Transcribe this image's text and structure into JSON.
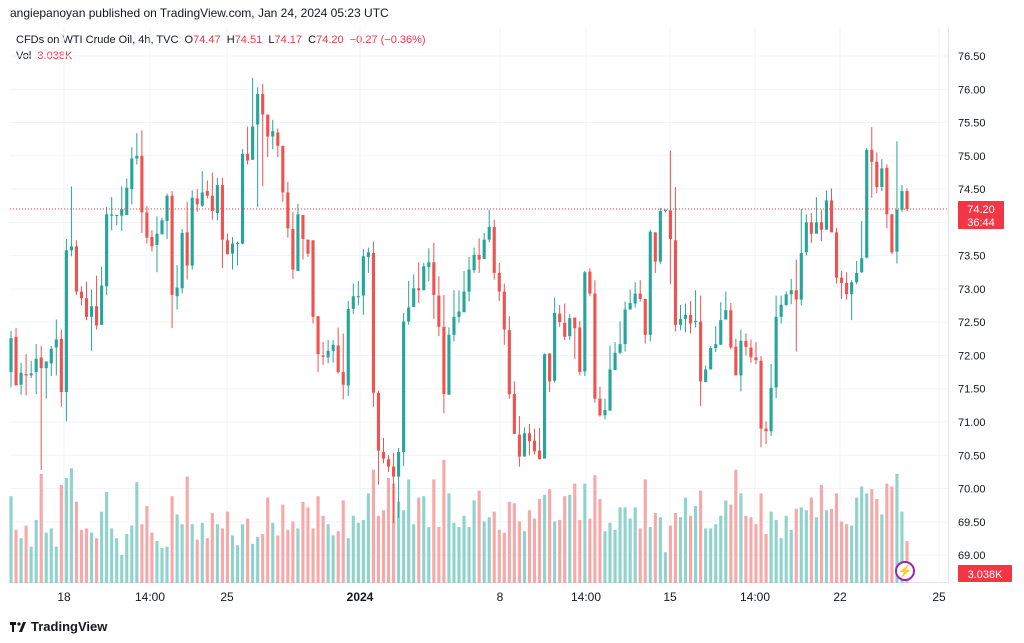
{
  "publisher": "angiepanoyan published on TradingView.com, Jan 24, 2024 05:23 UTC",
  "legend": {
    "symbol": "CFDs on WTI Crude Oil, 4h, TVC",
    "o_label": "O",
    "o": "74.47",
    "h_label": "H",
    "h": "74.51",
    "l_label": "L",
    "l": "74.17",
    "c_label": "C",
    "c": "74.20",
    "change": "−0.27 (−0.36%)",
    "vol_label": "Vol",
    "vol": "3.038K"
  },
  "price_tag": {
    "price": "74.20",
    "countdown": "36:44",
    "volume": "3.038K"
  },
  "brand": "TradingView",
  "colors": {
    "up": "#26a69a",
    "down": "#ef5350",
    "vol_up": "#8fd3cc",
    "vol_down": "#f7a8a8"
  },
  "chart_data": {
    "type": "candlestick",
    "timeframe": "4h",
    "ylim": [
      68.8,
      76.8
    ],
    "y_ticks": [
      "76.50",
      "76.00",
      "75.50",
      "75.00",
      "74.50",
      "74.00",
      "73.50",
      "73.00",
      "72.50",
      "72.00",
      "71.50",
      "71.00",
      "70.50",
      "70.00",
      "69.50",
      "69.00"
    ],
    "x_ticks": [
      "18",
      "14:00",
      "25",
      "2024",
      "8",
      "14:00",
      "15",
      "14:00",
      "22",
      "25"
    ],
    "last_price": 74.2,
    "candles": [
      [
        71.75,
        72.26,
        72.37,
        71.52,
        0.62
      ],
      [
        72.28,
        71.55,
        72.41,
        71.58,
        0.38
      ],
      [
        71.56,
        71.74,
        71.89,
        71.41,
        0.32
      ],
      [
        71.72,
        71.7,
        72.02,
        71.4,
        0.41
      ],
      [
        71.7,
        71.73,
        71.92,
        71.66,
        0.26
      ],
      [
        71.75,
        71.95,
        72.17,
        71.42,
        0.45
      ],
      [
        71.97,
        71.81,
        72.14,
        70.28,
        0.78
      ],
      [
        71.81,
        71.91,
        71.91,
        71.35,
        0.36
      ],
      [
        71.88,
        72.1,
        72.14,
        71.69,
        0.39
      ],
      [
        72.12,
        72.24,
        72.54,
        71.7,
        0.26
      ],
      [
        72.25,
        71.45,
        72.39,
        71.23,
        0.7
      ],
      [
        71.45,
        73.58,
        73.75,
        71.01,
        0.75
      ],
      [
        73.58,
        73.64,
        74.54,
        73.49,
        0.82
      ],
      [
        73.64,
        72.96,
        73.73,
        72.91,
        0.58
      ],
      [
        72.96,
        72.86,
        73.04,
        72.75,
        0.38
      ],
      [
        72.86,
        72.58,
        73.11,
        72.53,
        0.39
      ],
      [
        72.58,
        72.74,
        72.99,
        72.07,
        0.36
      ],
      [
        72.74,
        72.45,
        73.2,
        72.39,
        0.32
      ],
      [
        72.46,
        73.05,
        73.33,
        72.54,
        0.51
      ],
      [
        73.04,
        74.12,
        74.23,
        72.91,
        0.65
      ],
      [
        74.1,
        74.12,
        74.38,
        73.88,
        0.39
      ],
      [
        74.11,
        74.11,
        74.11,
        73.96,
        0.32
      ],
      [
        74.1,
        74.2,
        74.54,
        73.87,
        0.2
      ],
      [
        74.11,
        74.52,
        74.66,
        74.4,
        0.35
      ],
      [
        74.5,
        74.96,
        75.13,
        74.27,
        0.41
      ],
      [
        74.96,
        75.0,
        75.34,
        74.87,
        0.72
      ],
      [
        75.0,
        74.15,
        75.38,
        73.84,
        0.42
      ],
      [
        74.15,
        73.77,
        74.25,
        73.68,
        0.55
      ],
      [
        73.78,
        73.64,
        73.88,
        73.56,
        0.36
      ],
      [
        73.66,
        73.83,
        74.09,
        73.25,
        0.3
      ],
      [
        73.82,
        74.03,
        74.07,
        73.98,
        0.25
      ],
      [
        74.02,
        74.4,
        74.43,
        73.75,
        0.26
      ],
      [
        74.4,
        72.91,
        74.47,
        72.41,
        0.62
      ],
      [
        72.89,
        73.02,
        73.36,
        72.69,
        0.49
      ],
      [
        73.01,
        73.84,
        73.9,
        72.93,
        0.42
      ],
      [
        73.85,
        73.35,
        74.31,
        73.14,
        0.76
      ],
      [
        73.35,
        74.37,
        74.48,
        73.29,
        0.42
      ],
      [
        74.36,
        74.27,
        74.5,
        74.16,
        0.31
      ],
      [
        74.25,
        74.45,
        74.77,
        74.23,
        0.43
      ],
      [
        74.47,
        74.4,
        74.63,
        74.36,
        0.32
      ],
      [
        74.4,
        74.17,
        74.75,
        74.04,
        0.5
      ],
      [
        74.14,
        74.56,
        74.67,
        74.03,
        0.42
      ],
      [
        74.56,
        73.74,
        74.67,
        73.31,
        0.39
      ],
      [
        73.73,
        73.52,
        73.83,
        73.58,
        0.51
      ],
      [
        73.53,
        73.68,
        73.78,
        73.29,
        0.34
      ],
      [
        73.69,
        73.69,
        73.71,
        73.35,
        0.27
      ],
      [
        73.68,
        75.03,
        75.1,
        73.67,
        0.42
      ],
      [
        75.03,
        74.93,
        75.44,
        74.87,
        0.46
      ],
      [
        74.94,
        75.44,
        76.17,
        75.51,
        0.28
      ],
      [
        75.47,
        75.93,
        76.03,
        74.23,
        0.33
      ],
      [
        75.93,
        75.62,
        76.08,
        74.54,
        0.35
      ],
      [
        75.62,
        75.29,
        75.47,
        74.98,
        0.61
      ],
      [
        75.29,
        75.37,
        75.54,
        75.1,
        0.43
      ],
      [
        75.35,
        75.15,
        75.41,
        74.98,
        0.34
      ],
      [
        75.15,
        74.45,
        75.02,
        74.31,
        0.56
      ],
      [
        74.45,
        73.91,
        74.61,
        73.77,
        0.38
      ],
      [
        73.9,
        73.29,
        74.15,
        73.15,
        0.44
      ],
      [
        73.27,
        74.12,
        74.28,
        73.54,
        0.39
      ],
      [
        74.11,
        73.75,
        73.89,
        73.44,
        0.58
      ],
      [
        73.74,
        73.53,
        73.64,
        73.48,
        0.54
      ],
      [
        73.73,
        72.58,
        73.71,
        72.48,
        0.39
      ],
      [
        72.59,
        72.02,
        72.18,
        71.75,
        0.62
      ],
      [
        72.0,
        71.98,
        72.2,
        71.86,
        0.48
      ],
      [
        71.97,
        72.07,
        72.23,
        71.88,
        0.42
      ],
      [
        72.07,
        72.16,
        72.23,
        71.89,
        0.34
      ],
      [
        72.15,
        71.75,
        72.42,
        71.73,
        0.37
      ],
      [
        71.75,
        71.56,
        72.33,
        71.34,
        0.59
      ],
      [
        71.55,
        72.7,
        72.82,
        71.39,
        0.32
      ],
      [
        72.7,
        72.89,
        73.08,
        72.62,
        0.48
      ],
      [
        72.88,
        72.89,
        73.12,
        72.75,
        0.43
      ],
      [
        72.9,
        73.49,
        73.6,
        72.61,
        0.45
      ],
      [
        73.48,
        73.55,
        73.62,
        73.24,
        0.64
      ],
      [
        73.54,
        71.44,
        73.71,
        71.23,
        0.81
      ],
      [
        71.44,
        70.57,
        71.47,
        70.06,
        0.48
      ],
      [
        70.55,
        70.45,
        70.76,
        70.38,
        0.52
      ],
      [
        70.44,
        70.33,
        70.5,
        70.25,
        0.75
      ],
      [
        70.33,
        70.18,
        70.54,
        69.48,
        0.71
      ],
      [
        70.18,
        70.55,
        70.61,
        69.56,
        0.58
      ],
      [
        70.55,
        72.51,
        72.64,
        70.34,
        0.52
      ],
      [
        72.51,
        72.72,
        73.12,
        72.46,
        0.74
      ],
      [
        72.73,
        73.01,
        73.22,
        72.85,
        0.42
      ],
      [
        73.01,
        72.98,
        73.4,
        72.79,
        0.61
      ],
      [
        72.98,
        73.34,
        73.39,
        72.99,
        0.62
      ],
      [
        73.33,
        73.4,
        73.61,
        73.12,
        0.4
      ],
      [
        73.4,
        72.91,
        73.69,
        72.55,
        0.74
      ],
      [
        72.9,
        72.43,
        73.19,
        72.29,
        0.4
      ],
      [
        72.43,
        71.42,
        72.91,
        71.13,
        0.88
      ],
      [
        71.41,
        72.31,
        72.42,
        71.42,
        0.64
      ],
      [
        72.31,
        72.58,
        72.98,
        72.21,
        0.43
      ],
      [
        72.58,
        72.66,
        72.98,
        72.49,
        0.4
      ],
      [
        72.65,
        72.96,
        73.27,
        72.85,
        0.48
      ],
      [
        72.96,
        73.29,
        73.48,
        72.81,
        0.4
      ],
      [
        73.28,
        73.51,
        73.62,
        73.24,
        0.59
      ],
      [
        73.51,
        73.44,
        73.76,
        73.24,
        0.66
      ],
      [
        73.45,
        73.74,
        73.84,
        73.51,
        0.44
      ],
      [
        73.74,
        73.93,
        74.19,
        73.7,
        0.47
      ],
      [
        73.93,
        73.24,
        74.04,
        73.14,
        0.51
      ],
      [
        73.24,
        72.96,
        73.39,
        72.82,
        0.38
      ],
      [
        72.96,
        72.39,
        73.08,
        72.16,
        0.36
      ],
      [
        72.38,
        71.42,
        72.59,
        71.35,
        0.58
      ],
      [
        71.42,
        70.82,
        71.61,
        70.89,
        0.57
      ],
      [
        70.81,
        70.48,
        71.09,
        70.33,
        0.44
      ],
      [
        70.48,
        70.83,
        70.92,
        70.66,
        0.37
      ],
      [
        70.83,
        70.71,
        70.97,
        70.5,
        0.52
      ],
      [
        70.72,
        70.56,
        70.9,
        70.51,
        0.46
      ],
      [
        70.57,
        70.44,
        70.91,
        70.46,
        0.6
      ],
      [
        70.45,
        72.02,
        72.03,
        70.49,
        0.63
      ],
      [
        72.03,
        71.61,
        71.73,
        71.45,
        0.67
      ],
      [
        71.62,
        72.64,
        72.87,
        71.59,
        0.44
      ],
      [
        72.63,
        72.5,
        72.76,
        72.43,
        0.45
      ],
      [
        72.49,
        72.28,
        72.78,
        72.23,
        0.62
      ],
      [
        72.29,
        72.56,
        72.62,
        72.23,
        0.63
      ],
      [
        72.57,
        72.41,
        72.56,
        71.95,
        0.71
      ],
      [
        72.42,
        71.75,
        72.52,
        71.7,
        0.45
      ],
      [
        71.76,
        73.25,
        73.27,
        71.69,
        0.71
      ],
      [
        73.26,
        72.93,
        73.31,
        72.89,
        0.46
      ],
      [
        72.93,
        71.35,
        73.13,
        71.29,
        0.77
      ],
      [
        71.35,
        71.1,
        71.53,
        71.08,
        0.6
      ],
      [
        71.1,
        71.18,
        71.35,
        71.04,
        0.37
      ],
      [
        71.17,
        71.79,
        72.15,
        71.52,
        0.43
      ],
      [
        71.78,
        72.04,
        72.2,
        71.9,
        0.38
      ],
      [
        72.04,
        72.17,
        72.51,
        72.02,
        0.54
      ],
      [
        72.17,
        72.69,
        72.81,
        72.06,
        0.54
      ],
      [
        72.69,
        72.79,
        72.99,
        72.72,
        0.46
      ],
      [
        72.78,
        72.93,
        73.1,
        72.72,
        0.54
      ],
      [
        72.93,
        72.85,
        73.13,
        72.81,
        0.39
      ],
      [
        72.85,
        72.31,
        72.83,
        72.18,
        0.74
      ],
      [
        72.31,
        73.86,
        73.89,
        72.21,
        0.4
      ],
      [
        73.85,
        73.41,
        73.83,
        73.24,
        0.5
      ],
      [
        73.41,
        74.17,
        74.22,
        73.37,
        0.47
      ],
      [
        74.17,
        74.19,
        74.19,
        74.15,
        0.22
      ],
      [
        74.18,
        73.75,
        75.08,
        73.07,
        0.41
      ],
      [
        73.73,
        72.46,
        74.53,
        72.36,
        0.5
      ],
      [
        72.46,
        72.55,
        72.76,
        72.38,
        0.47
      ],
      [
        72.55,
        72.61,
        72.78,
        72.35,
        0.61
      ],
      [
        72.61,
        72.48,
        72.82,
        72.33,
        0.48
      ],
      [
        72.5,
        72.52,
        72.98,
        72.42,
        0.55
      ],
      [
        72.51,
        71.61,
        72.9,
        71.24,
        0.66
      ],
      [
        71.6,
        71.79,
        71.85,
        71.62,
        0.39
      ],
      [
        71.79,
        72.11,
        72.14,
        71.89,
        0.39
      ],
      [
        72.11,
        72.17,
        72.44,
        72.05,
        0.42
      ],
      [
        72.16,
        72.53,
        72.8,
        72.16,
        0.48
      ],
      [
        72.54,
        72.68,
        72.96,
        72.56,
        0.59
      ],
      [
        72.68,
        72.12,
        72.79,
        72.09,
        0.56
      ],
      [
        72.13,
        71.7,
        72.25,
        71.71,
        0.81
      ],
      [
        71.7,
        72.22,
        72.39,
        71.46,
        0.64
      ],
      [
        72.22,
        72.13,
        72.33,
        72.0,
        0.48
      ],
      [
        72.12,
        71.97,
        72.24,
        71.89,
        0.47
      ],
      [
        71.97,
        71.93,
        72.2,
        71.87,
        0.42
      ],
      [
        71.92,
        70.9,
        71.99,
        70.62,
        0.64
      ],
      [
        70.9,
        70.86,
        71.01,
        70.67,
        0.35
      ],
      [
        70.86,
        71.51,
        71.87,
        70.79,
        0.51
      ],
      [
        71.52,
        72.58,
        72.9,
        71.36,
        0.45
      ],
      [
        72.58,
        72.76,
        72.9,
        72.48,
        0.32
      ],
      [
        72.76,
        72.92,
        72.96,
        72.74,
        0.48
      ],
      [
        72.92,
        72.98,
        73.15,
        72.77,
        0.38
      ],
      [
        72.98,
        72.84,
        73.44,
        72.06,
        0.53
      ],
      [
        72.84,
        73.54,
        74.2,
        72.75,
        0.54
      ],
      [
        73.55,
        74.0,
        74.12,
        73.5,
        0.52
      ],
      [
        74.0,
        73.83,
        74.14,
        73.69,
        0.61
      ],
      [
        73.83,
        74.0,
        74.38,
        73.88,
        0.47
      ],
      [
        74.0,
        73.89,
        74.19,
        73.72,
        0.7
      ],
      [
        73.89,
        74.33,
        74.48,
        74.07,
        0.52
      ],
      [
        74.33,
        73.85,
        74.51,
        73.85,
        0.53
      ],
      [
        73.85,
        73.17,
        73.92,
        73.08,
        0.64
      ],
      [
        73.17,
        73.09,
        73.27,
        72.85,
        0.44
      ],
      [
        73.09,
        72.92,
        73.25,
        72.84,
        0.42
      ],
      [
        72.92,
        73.1,
        73.13,
        72.53,
        0.41
      ],
      [
        73.1,
        73.24,
        73.42,
        73.07,
        0.61
      ],
      [
        73.25,
        73.46,
        74.02,
        73.24,
        0.69
      ],
      [
        73.47,
        75.09,
        75.12,
        73.46,
        0.64
      ],
      [
        75.09,
        74.91,
        75.43,
        74.37,
        0.67
      ],
      [
        74.91,
        74.53,
        75.05,
        74.44,
        0.6
      ],
      [
        74.53,
        74.81,
        74.95,
        74.47,
        0.49
      ],
      [
        74.82,
        74.12,
        74.87,
        73.91,
        0.71
      ],
      [
        74.12,
        73.55,
        74.13,
        73.52,
        0.69
      ],
      [
        73.56,
        74.19,
        75.22,
        73.38,
        0.78
      ],
      [
        74.19,
        74.47,
        74.56,
        74.16,
        0.51
      ],
      [
        74.47,
        74.2,
        74.51,
        74.17,
        0.3
      ]
    ]
  }
}
